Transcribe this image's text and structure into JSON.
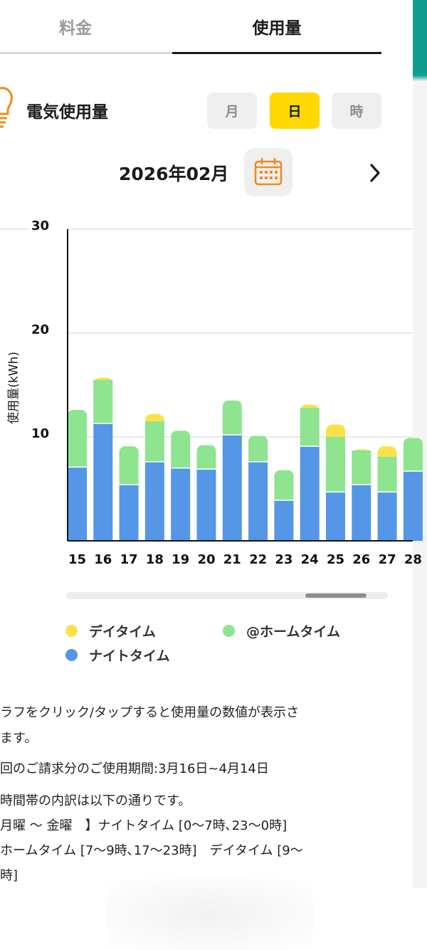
{
  "tabs": {
    "left": "料金",
    "right": "使用量"
  },
  "section": {
    "title": "電気使用量",
    "icon": "lightbulb-icon"
  },
  "period_toggle": {
    "month": "月",
    "day": "日",
    "hour": "時",
    "selected": "日"
  },
  "date": {
    "label": "2026年02月",
    "calendar_icon": "calendar-icon",
    "next_icon": "chevron-right-icon"
  },
  "colors": {
    "day": "#fde14a",
    "home": "#8ee48f",
    "night": "#5596e6",
    "accent": "#ffd800",
    "calendar": "#f08a1c"
  },
  "chart_data": {
    "type": "bar",
    "stacked": true,
    "ylabel": "使用量(kWh)",
    "ylim": [
      0,
      30
    ],
    "yticks": [
      "10",
      "20",
      "30"
    ],
    "grid": true,
    "categories": [
      "15",
      "16",
      "17",
      "18",
      "19",
      "20",
      "21",
      "22",
      "23",
      "24",
      "25",
      "26",
      "27",
      "28"
    ],
    "series": [
      {
        "name": "ナイトタイム",
        "values": [
          7.1,
          11.3,
          5.4,
          7.6,
          7.0,
          6.9,
          10.2,
          7.6,
          3.9,
          9.1,
          4.7,
          5.4,
          4.7,
          6.7
        ]
      },
      {
        "name": "@ホームタイム",
        "values": [
          5.5,
          4.2,
          3.7,
          3.9,
          3.6,
          2.3,
          3.3,
          2.5,
          2.9,
          3.7,
          5.3,
          3.3,
          3.4,
          3.2
        ]
      },
      {
        "name": "デイタイム",
        "values": [
          0.0,
          0.2,
          0.0,
          0.7,
          0.0,
          0.0,
          0.0,
          0.0,
          0.0,
          0.3,
          1.2,
          0.1,
          1.0,
          0.0
        ]
      }
    ]
  },
  "legend": {
    "day": "デイタイム",
    "home": "@ホームタイム",
    "night": "ナイトタイム"
  },
  "notes": {
    "line1": "ラフをクリック/タップすると使用量の数値が表示さ",
    "line2": "ます。",
    "line3": "回のご請求分のご使用期間:3月16日~4月14日",
    "line4": "時間帯の内訳は以下の通りです。",
    "line5": " 月曜 〜 金曜　】ナイトタイム [0〜7時､23〜0時]",
    "line6": "ホームタイム [7〜9時､17〜23時]　デイタイム [9〜",
    "line7": "時]"
  }
}
